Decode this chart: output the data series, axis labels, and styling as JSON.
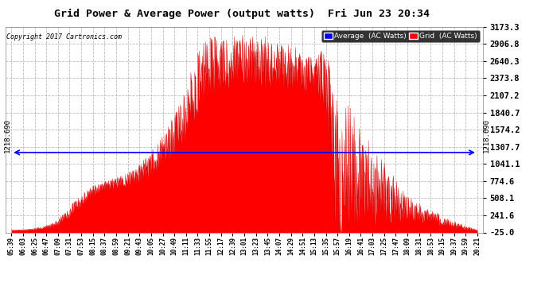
{
  "title": "Grid Power & Average Power (output watts)  Fri Jun 23 20:34",
  "copyright": "Copyright 2017 Cartronics.com",
  "background_color": "#ffffff",
  "plot_bg_color": "#ffffff",
  "grid_color": "#aaaaaa",
  "fill_color": "#ff0000",
  "avg_line_color": "#0000ff",
  "avg_value": 1218.69,
  "avg_label": "1218.690",
  "ylim": [
    -25.0,
    3173.3
  ],
  "yticks": [
    -25.0,
    241.6,
    508.1,
    774.6,
    1041.1,
    1307.7,
    1574.2,
    1840.7,
    2107.2,
    2373.8,
    2640.3,
    2906.8,
    3173.3
  ],
  "legend_avg_label": "Average  (AC Watts)",
  "legend_grid_label": "Grid  (AC Watts)",
  "legend_avg_bg": "#0000ff",
  "legend_grid_bg": "#ff0000",
  "xtick_labels": [
    "05:39",
    "06:03",
    "06:25",
    "06:47",
    "07:09",
    "07:31",
    "07:53",
    "08:15",
    "08:37",
    "08:59",
    "09:21",
    "09:43",
    "10:05",
    "10:27",
    "10:49",
    "11:11",
    "11:33",
    "11:55",
    "12:17",
    "12:39",
    "13:01",
    "13:23",
    "13:45",
    "14:07",
    "14:29",
    "14:51",
    "15:13",
    "15:35",
    "15:57",
    "16:19",
    "16:41",
    "17:03",
    "17:25",
    "17:47",
    "18:09",
    "18:31",
    "18:53",
    "19:15",
    "19:37",
    "19:59",
    "20:21"
  ],
  "base_y": [
    10,
    15,
    30,
    60,
    130,
    300,
    480,
    620,
    700,
    750,
    800,
    900,
    1050,
    1200,
    1450,
    1800,
    2300,
    2550,
    2620,
    2650,
    2680,
    2650,
    2620,
    2580,
    2520,
    2480,
    2450,
    2350,
    800,
    900,
    800,
    700,
    580,
    450,
    350,
    280,
    220,
    160,
    100,
    50,
    10
  ],
  "noise_amplitude": [
    5,
    5,
    10,
    20,
    40,
    80,
    100,
    80,
    80,
    80,
    100,
    150,
    200,
    280,
    350,
    450,
    500,
    500,
    400,
    400,
    400,
    400,
    400,
    380,
    360,
    340,
    300,
    500,
    1200,
    1100,
    900,
    700,
    500,
    350,
    200,
    150,
    100,
    80,
    50,
    30,
    5
  ]
}
